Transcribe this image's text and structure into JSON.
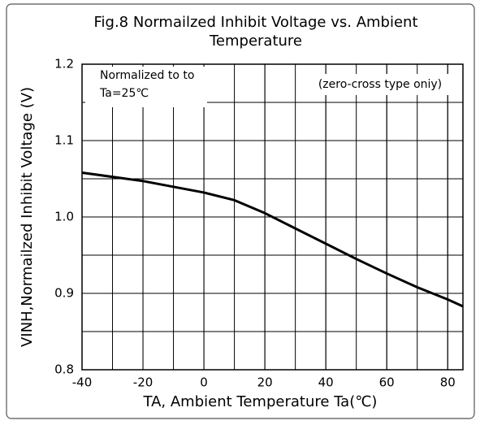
{
  "chart_data": {
    "type": "line",
    "title": "Fig.8  Normailzed Inhibit Voltage vs. Ambient Temperature",
    "xlabel": "TA, Ambient Temperature Ta(℃)",
    "ylabel": "VINH,Normailzed Inhibit Voltage (V)",
    "annotations": [
      "Normalized to to",
      "Ta=25℃",
      "(zero-cross type oniy)"
    ],
    "x": [
      -40,
      -20,
      0,
      10,
      20,
      30,
      40,
      50,
      60,
      70,
      80,
      85
    ],
    "series": [
      {
        "name": "VINH",
        "color": "#000000",
        "values": [
          1.058,
          1.047,
          1.032,
          1.022,
          1.005,
          0.985,
          0.965,
          0.945,
          0.926,
          0.908,
          0.892,
          0.883
        ]
      }
    ],
    "xlim": [
      -40,
      85
    ],
    "xticks": [
      -40,
      -20,
      0,
      20,
      40,
      60,
      80
    ],
    "ylim": [
      0.8,
      1.2
    ],
    "yticks": [
      0.8,
      0.9,
      {
        "value": 1,
        "label": "1.0"
      },
      1.1,
      1.2
    ],
    "grid": true,
    "minor_grid": {
      "x": 10,
      "y": 0.05
    }
  }
}
